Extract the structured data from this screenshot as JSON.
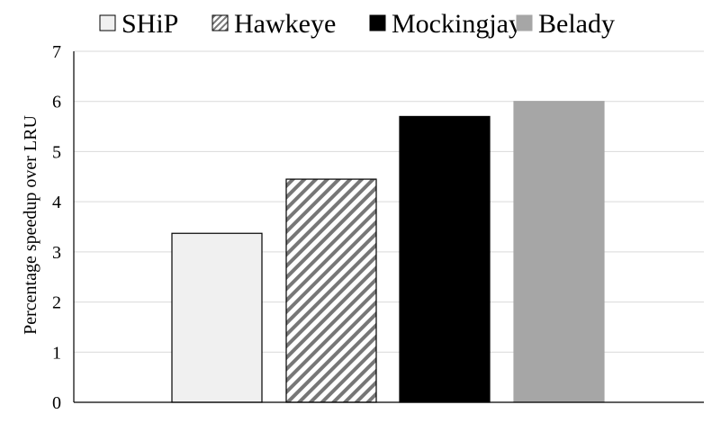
{
  "chart_data": {
    "type": "bar",
    "title": "",
    "xlabel": "",
    "ylabel": "Percentage speedup over LRU",
    "ylim": [
      0,
      7
    ],
    "yticks": [
      0,
      1,
      2,
      3,
      4,
      5,
      6,
      7
    ],
    "grid": true,
    "legend_position": "top",
    "categories": [
      "SHiP",
      "Hawkeye",
      "Mockingjay",
      "Belady"
    ],
    "values": [
      3.37,
      4.45,
      5.7,
      6.0
    ],
    "series_styles": [
      {
        "name": "SHiP",
        "fill": "#f0f0f0",
        "pattern": "none",
        "stroke": "#000000"
      },
      {
        "name": "Hawkeye",
        "fill": "#ffffff",
        "pattern": "diagonal-hatch",
        "hatch_color": "#777777",
        "stroke": "#000000"
      },
      {
        "name": "Mockingjay",
        "fill": "#000000",
        "pattern": "none",
        "stroke": "#000000"
      },
      {
        "name": "Belady",
        "fill": "#a6a6a6",
        "pattern": "none",
        "stroke": "#a6a6a6"
      }
    ]
  },
  "colors": {
    "grid": "#d9d9d9",
    "axis": "#000000",
    "text": "#000000"
  }
}
